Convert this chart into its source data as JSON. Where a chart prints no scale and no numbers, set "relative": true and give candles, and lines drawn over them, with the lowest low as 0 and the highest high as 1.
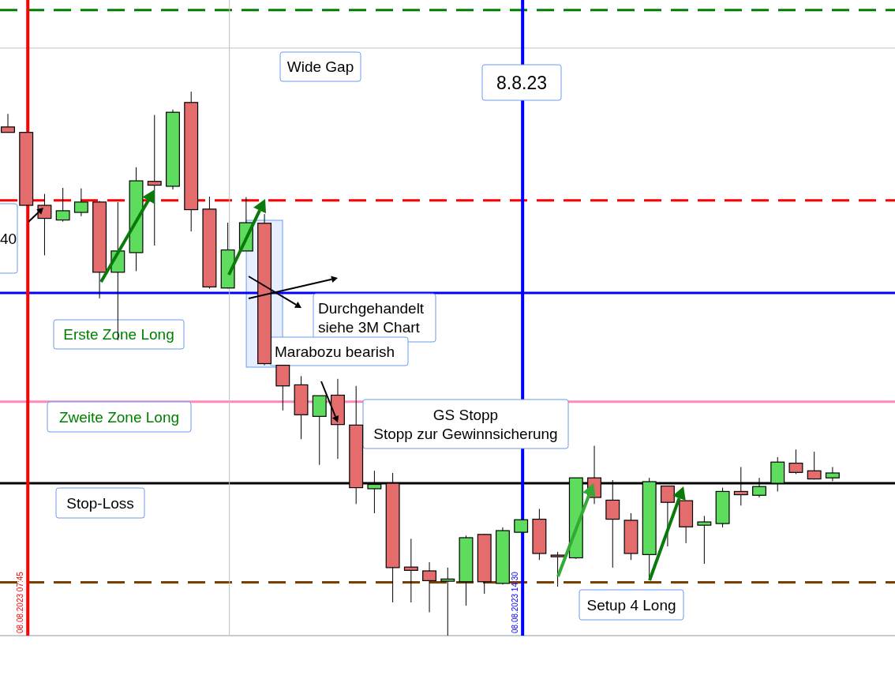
{
  "chart_data": {
    "type": "candlestick",
    "relative": true,
    "categories": [
      null,
      null,
      null,
      null,
      null,
      null,
      null,
      null,
      null,
      null,
      null,
      null,
      null,
      null,
      null,
      null,
      null,
      null,
      null,
      null,
      null,
      null,
      null,
      null,
      null,
      null,
      null,
      null,
      null,
      null,
      null,
      null,
      null,
      null,
      null,
      null,
      null,
      null,
      null,
      null,
      null,
      null,
      null,
      null,
      null,
      null
    ],
    "ohlc": [
      [
        0.935,
        0.959,
        0.925,
        0.925
      ],
      [
        0.925,
        0.925,
        0.791,
        0.791
      ],
      [
        0.791,
        0.812,
        0.699,
        0.767
      ],
      [
        0.764,
        0.823,
        0.761,
        0.781
      ],
      [
        0.778,
        0.822,
        0.771,
        0.797
      ],
      [
        0.797,
        0.799,
        0.62,
        0.668
      ],
      [
        0.668,
        0.797,
        0.543,
        0.707
      ],
      [
        0.704,
        0.861,
        0.67,
        0.836
      ],
      [
        0.835,
        0.957,
        0.717,
        0.828
      ],
      [
        0.826,
        0.967,
        0.82,
        0.962
      ],
      [
        0.98,
        1.0,
        0.743,
        0.783
      ],
      [
        0.784,
        0.807,
        0.638,
        0.641
      ],
      [
        0.639,
        0.759,
        0.638,
        0.709
      ],
      [
        0.707,
        0.806,
        0.707,
        0.759
      ],
      [
        0.758,
        0.775,
        0.497,
        0.5
      ],
      [
        0.497,
        0.497,
        0.414,
        0.459
      ],
      [
        0.461,
        0.477,
        0.361,
        0.406
      ],
      [
        0.403,
        0.441,
        0.314,
        0.441
      ],
      [
        0.442,
        0.472,
        0.325,
        0.388
      ],
      [
        0.387,
        0.459,
        0.242,
        0.272
      ],
      [
        0.27,
        0.303,
        0.225,
        0.278
      ],
      [
        0.28,
        0.299,
        0.061,
        0.125
      ],
      [
        0.126,
        0.178,
        0.061,
        0.12
      ],
      [
        0.119,
        0.135,
        0.043,
        0.101
      ],
      [
        0.1,
        0.125,
        0.0,
        0.104
      ],
      [
        0.099,
        0.184,
        0.055,
        0.18
      ],
      [
        0.186,
        0.187,
        0.077,
        0.099
      ],
      [
        0.096,
        0.199,
        0.094,
        0.193
      ],
      [
        0.19,
        0.213,
        0.19,
        0.213
      ],
      [
        0.214,
        0.233,
        0.139,
        0.151
      ],
      [
        0.148,
        0.154,
        0.09,
        0.145
      ],
      [
        0.143,
        0.29,
        0.141,
        0.29
      ],
      [
        0.29,
        0.349,
        0.242,
        0.254
      ],
      [
        0.249,
        0.286,
        0.125,
        0.214
      ],
      [
        0.212,
        0.225,
        0.139,
        0.151
      ],
      [
        0.149,
        0.29,
        0.106,
        0.283
      ],
      [
        0.275,
        0.275,
        0.164,
        0.245
      ],
      [
        0.248,
        0.248,
        0.17,
        0.2
      ],
      [
        0.203,
        0.22,
        0.132,
        0.209
      ],
      [
        0.206,
        0.272,
        0.199,
        0.265
      ],
      [
        0.265,
        0.31,
        0.239,
        0.259
      ],
      [
        0.258,
        0.29,
        0.254,
        0.274
      ],
      [
        0.28,
        0.328,
        0.265,
        0.319
      ],
      [
        0.317,
        0.342,
        0.297,
        0.3
      ],
      [
        0.303,
        0.338,
        0.287,
        0.288
      ],
      [
        0.29,
        0.31,
        0.284,
        0.299
      ]
    ],
    "colors": [
      "#e46c6c",
      "#e46c6c",
      "#e46c6c",
      "#5ddc5d",
      "#5ddc5d",
      "#e46c6c",
      "#5ddc5d",
      "#5ddc5d",
      "#e46c6c",
      "#5ddc5d",
      "#e46c6c",
      "#e46c6c",
      "#5ddc5d",
      "#5ddc5d",
      "#e46c6c",
      "#e46c6c",
      "#e46c6c",
      "#5ddc5d",
      "#e46c6c",
      "#e46c6c",
      "#5ddc5d",
      "#e46c6c",
      "#e46c6c",
      "#e46c6c",
      "#5ddc5d",
      "#5ddc5d",
      "#e46c6c",
      "#5ddc5d",
      "#5ddc5d",
      "#e46c6c",
      "#e46c6c",
      "#5ddc5d",
      "#e46c6c",
      "#e46c6c",
      "#e46c6c",
      "#5ddc5d",
      "#e46c6c",
      "#e46c6c",
      "#5ddc5d",
      "#5ddc5d",
      "#e46c6c",
      "#5ddc5d",
      "#5ddc5d",
      "#e46c6c",
      "#e46c6c",
      "#5ddc5d"
    ],
    "ref_lines": [
      {
        "axis": "y",
        "value": 1.15,
        "color": "#008000",
        "line_style": "dashed"
      },
      {
        "axis": "y",
        "value": 1.08,
        "color": "#c0c0c0",
        "line_style": "solid"
      },
      {
        "axis": "y",
        "value": 0.8,
        "color": "#ff0000",
        "line_style": "dashed"
      },
      {
        "axis": "y",
        "value": 0.63,
        "color": "#0000ff",
        "line_style": "solid"
      },
      {
        "axis": "y",
        "value": 0.43,
        "color": "#ff88bb",
        "line_style": "solid"
      },
      {
        "axis": "y",
        "value": 0.28,
        "color": "#000000",
        "line_style": "solid"
      },
      {
        "axis": "y",
        "value": 0.098,
        "color": "#7a4000",
        "line_style": "dashed"
      }
    ],
    "annotations": [
      "Wide Gap",
      "8.8.23",
      "Durchgehandelt\nsiehe 3M Chart",
      "Marabozu bearish",
      "Erste Zone Long",
      "Zweite Zone Long",
      "GS Stopp\nStopp zur Gewinnsicherung",
      "Stop-Loss",
      "Setup 4 Long",
      "40",
      "08.08.2023 07:45",
      "08.08.2023 14:30"
    ]
  }
}
